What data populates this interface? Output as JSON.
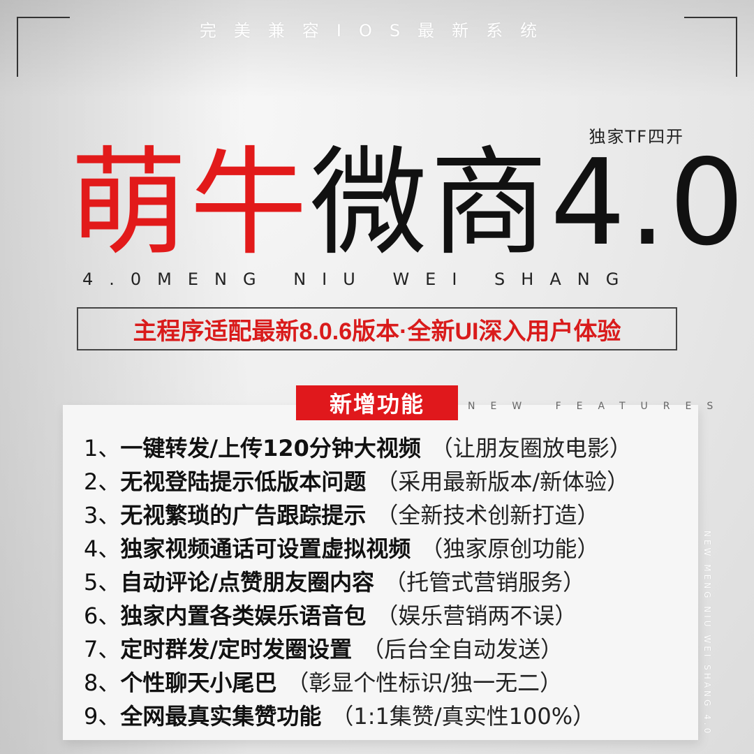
{
  "top_tagline": "完美兼容IOS最新系统",
  "exclusive_label": "独家TF四开",
  "title": {
    "red": "萌牛",
    "black": "微商",
    "version": "4.0"
  },
  "subtitle_en": "4.0MENG NIU WEI SHANG",
  "headline": "主程序适配最新8.0.6版本·全新UI深入用户体验",
  "features": {
    "badge": "新增功能",
    "en_label": "NEW FEATURES",
    "items": [
      {
        "num": "1、",
        "main": "一键转发/上传120分钟大视频",
        "note": "（让朋友圈放电影）"
      },
      {
        "num": "2、",
        "main": "无视登陆提示低版本问题",
        "note": "（采用最新版本/新体验）"
      },
      {
        "num": "3、",
        "main": "无视繁琐的广告跟踪提示",
        "note": "（全新技术创新打造）"
      },
      {
        "num": "4、",
        "main": "独家视频通话可设置虚拟视频",
        "note": "（独家原创功能）"
      },
      {
        "num": "5、",
        "main": "自动评论/点赞朋友圈内容",
        "note": "（托管式营销服务）"
      },
      {
        "num": "6、",
        "main": "独家内置各类娱乐语音包",
        "note": "（娱乐营销两不误）"
      },
      {
        "num": "7、",
        "main": "定时群发/定时发圈设置",
        "note": "（后台全自动发送）"
      },
      {
        "num": "8、",
        "main": "个性聊天小尾巴",
        "note": "（彰显个性标识/独一无二）"
      },
      {
        "num": "9、",
        "main": "全网最真实集赞功能",
        "note": "（1:1集赞/真实性100%）"
      }
    ]
  },
  "side_text": "NEW MENG NIU WEI SHANG 4.0",
  "colors": {
    "accent_red": "#e0181c",
    "text_dark": "#111111"
  }
}
